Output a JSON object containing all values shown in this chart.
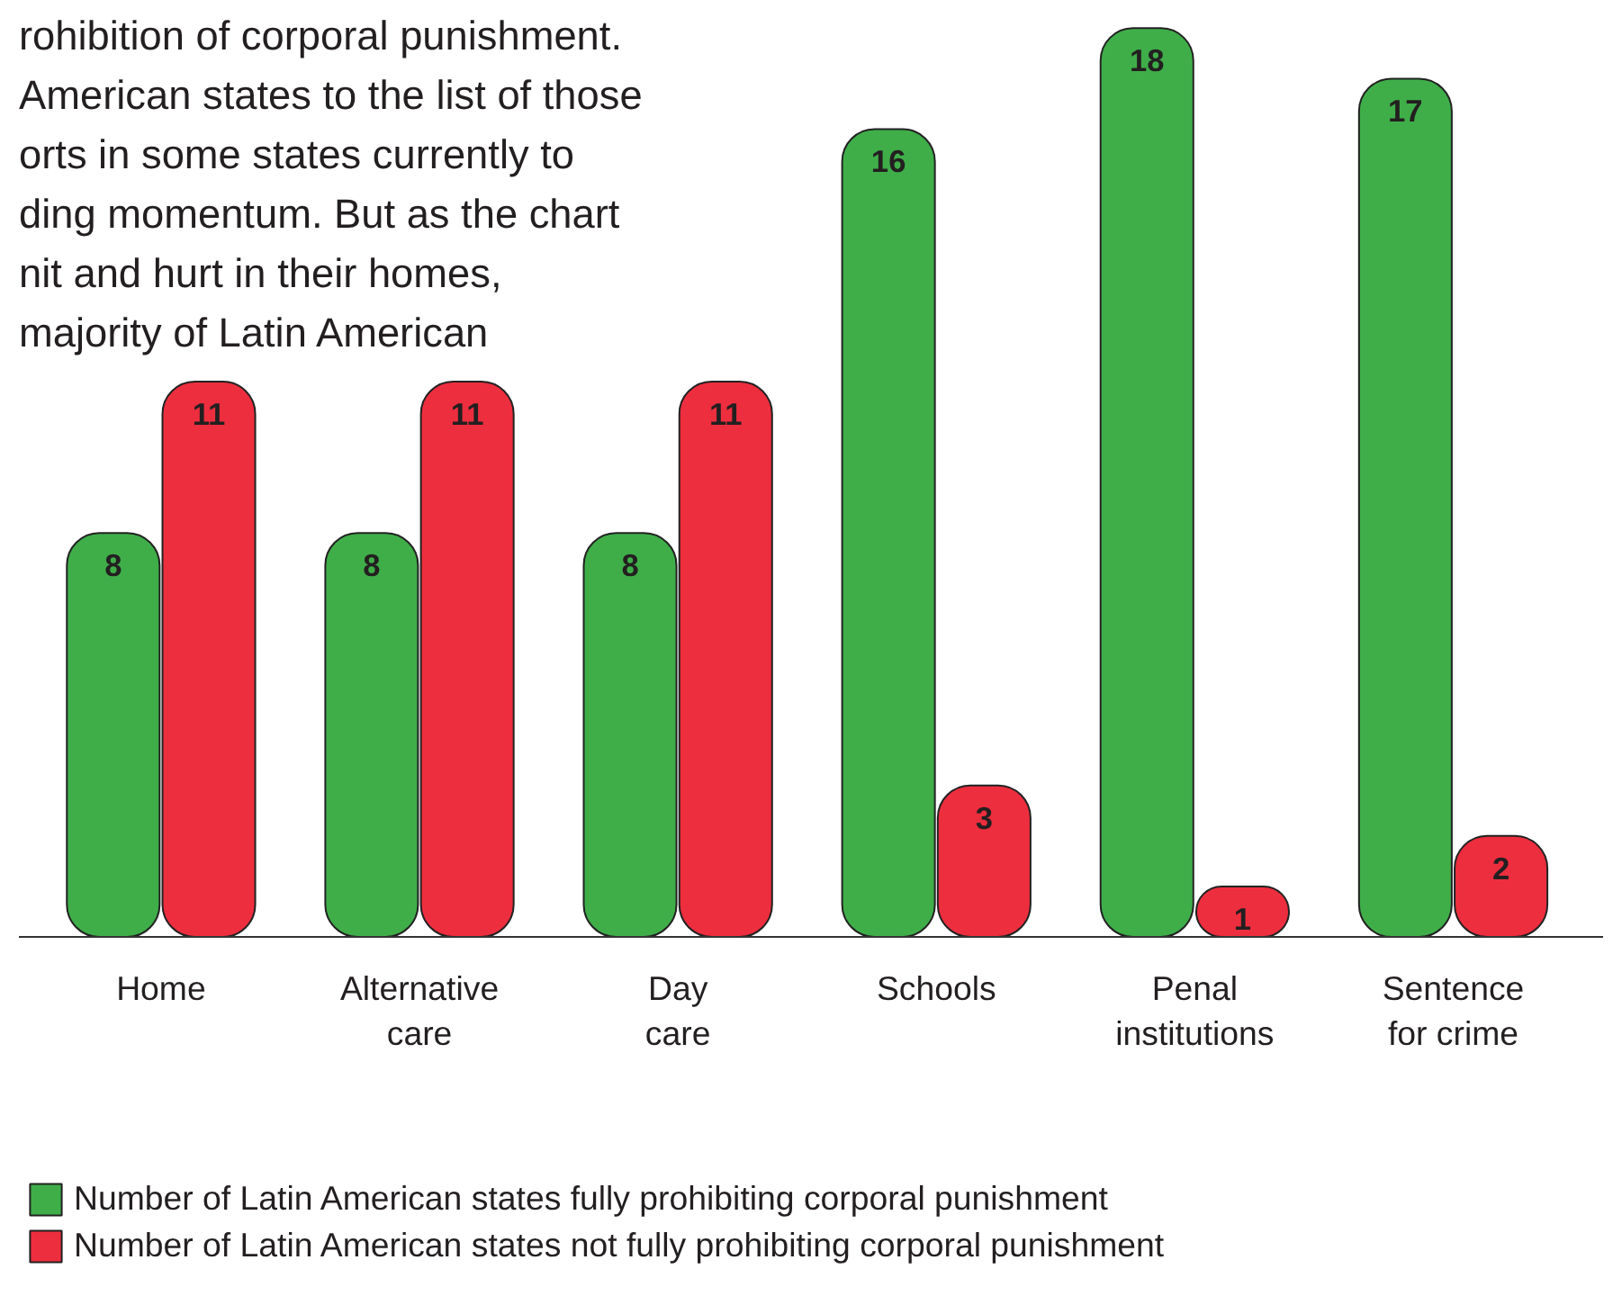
{
  "chart_data": {
    "type": "bar",
    "categories": [
      "Home",
      "Alternative care",
      "Day care",
      "Schools",
      "Penal institutions",
      "Sentence for crime"
    ],
    "series": [
      {
        "name": "Number of Latin American states fully prohibiting corporal punishment",
        "color": "#3fae49",
        "values": [
          8,
          8,
          8,
          16,
          18,
          17
        ]
      },
      {
        "name": "Number of Latin American states not fully prohibiting corporal punishment",
        "color": "#ed2e3e",
        "values": [
          11,
          11,
          11,
          3,
          1,
          2
        ]
      }
    ],
    "data_labels": true,
    "legend": "bottom",
    "grid": false,
    "annotations": [
      "rohibition of corporal punishment.",
      "American states to the list of those",
      "orts in some states currently to",
      "ding momentum. But as the chart",
      "nit and hurt in their homes,",
      "majority of Latin American"
    ]
  }
}
